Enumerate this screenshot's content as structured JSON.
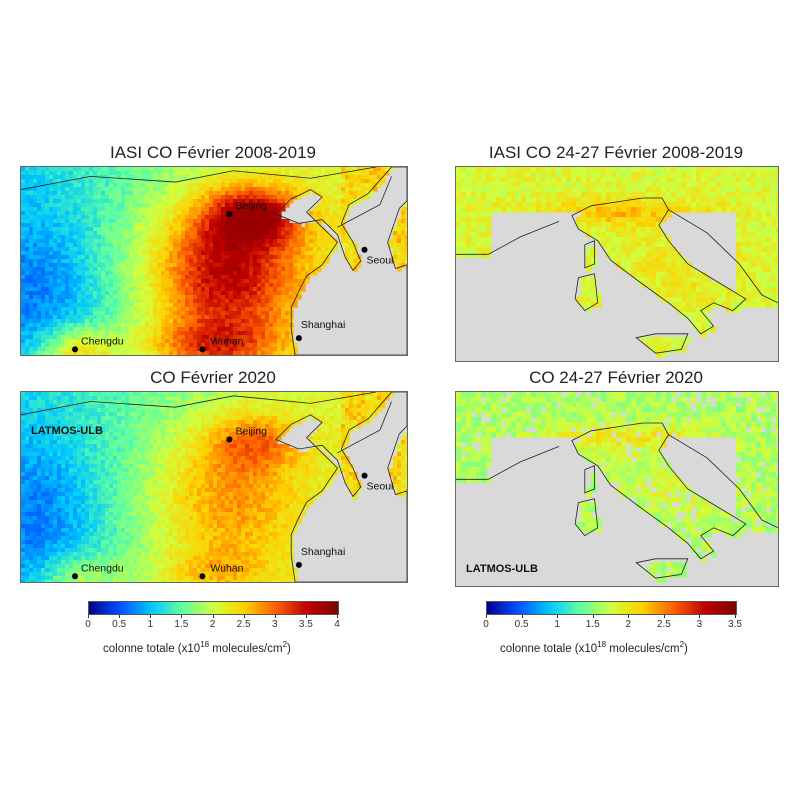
{
  "panels": {
    "tl": {
      "title": "IASI CO Février 2008-2019",
      "badge": ""
    },
    "tr": {
      "title": "IASI CO 24-27 Février 2008-2019",
      "badge": ""
    },
    "bl": {
      "title": "CO Février 2020",
      "badge": "LATMOS-ULB"
    },
    "br": {
      "title": "CO 24-27 Février 2020",
      "badge": "LATMOS-ULB"
    }
  },
  "cities": {
    "beijing": "Beijing",
    "seoul": "Seoul",
    "shanghai": "Shanghai",
    "chengdu": "Chengdu",
    "wuhan": "Wuhan"
  },
  "colorbars": {
    "left": {
      "ticks": [
        "0",
        "0.5",
        "1",
        "1.5",
        "2",
        "2.5",
        "3",
        "3.5",
        "4"
      ],
      "range": [
        0,
        4
      ],
      "label_pre": "colonne totale (x10",
      "label_exp": "18",
      "label_mid": " molecules/cm",
      "label_exp2": "2",
      "label_post": ")"
    },
    "right": {
      "ticks": [
        "0",
        "0.5",
        "1",
        "1.5",
        "2",
        "2.5",
        "3",
        "3.5"
      ],
      "range": [
        0,
        3.5
      ],
      "label_pre": "colonne totale (x10",
      "label_exp": "18",
      "label_mid": " molecules/cm",
      "label_exp2": "2",
      "label_post": ")"
    }
  },
  "colors": {
    "land_mask": "#d9d9d9",
    "colormap": [
      "#00008f",
      "#0050ff",
      "#00c8ff",
      "#60ffa0",
      "#d0ff40",
      "#ffd000",
      "#ff6000",
      "#c00000",
      "#800000"
    ]
  }
}
